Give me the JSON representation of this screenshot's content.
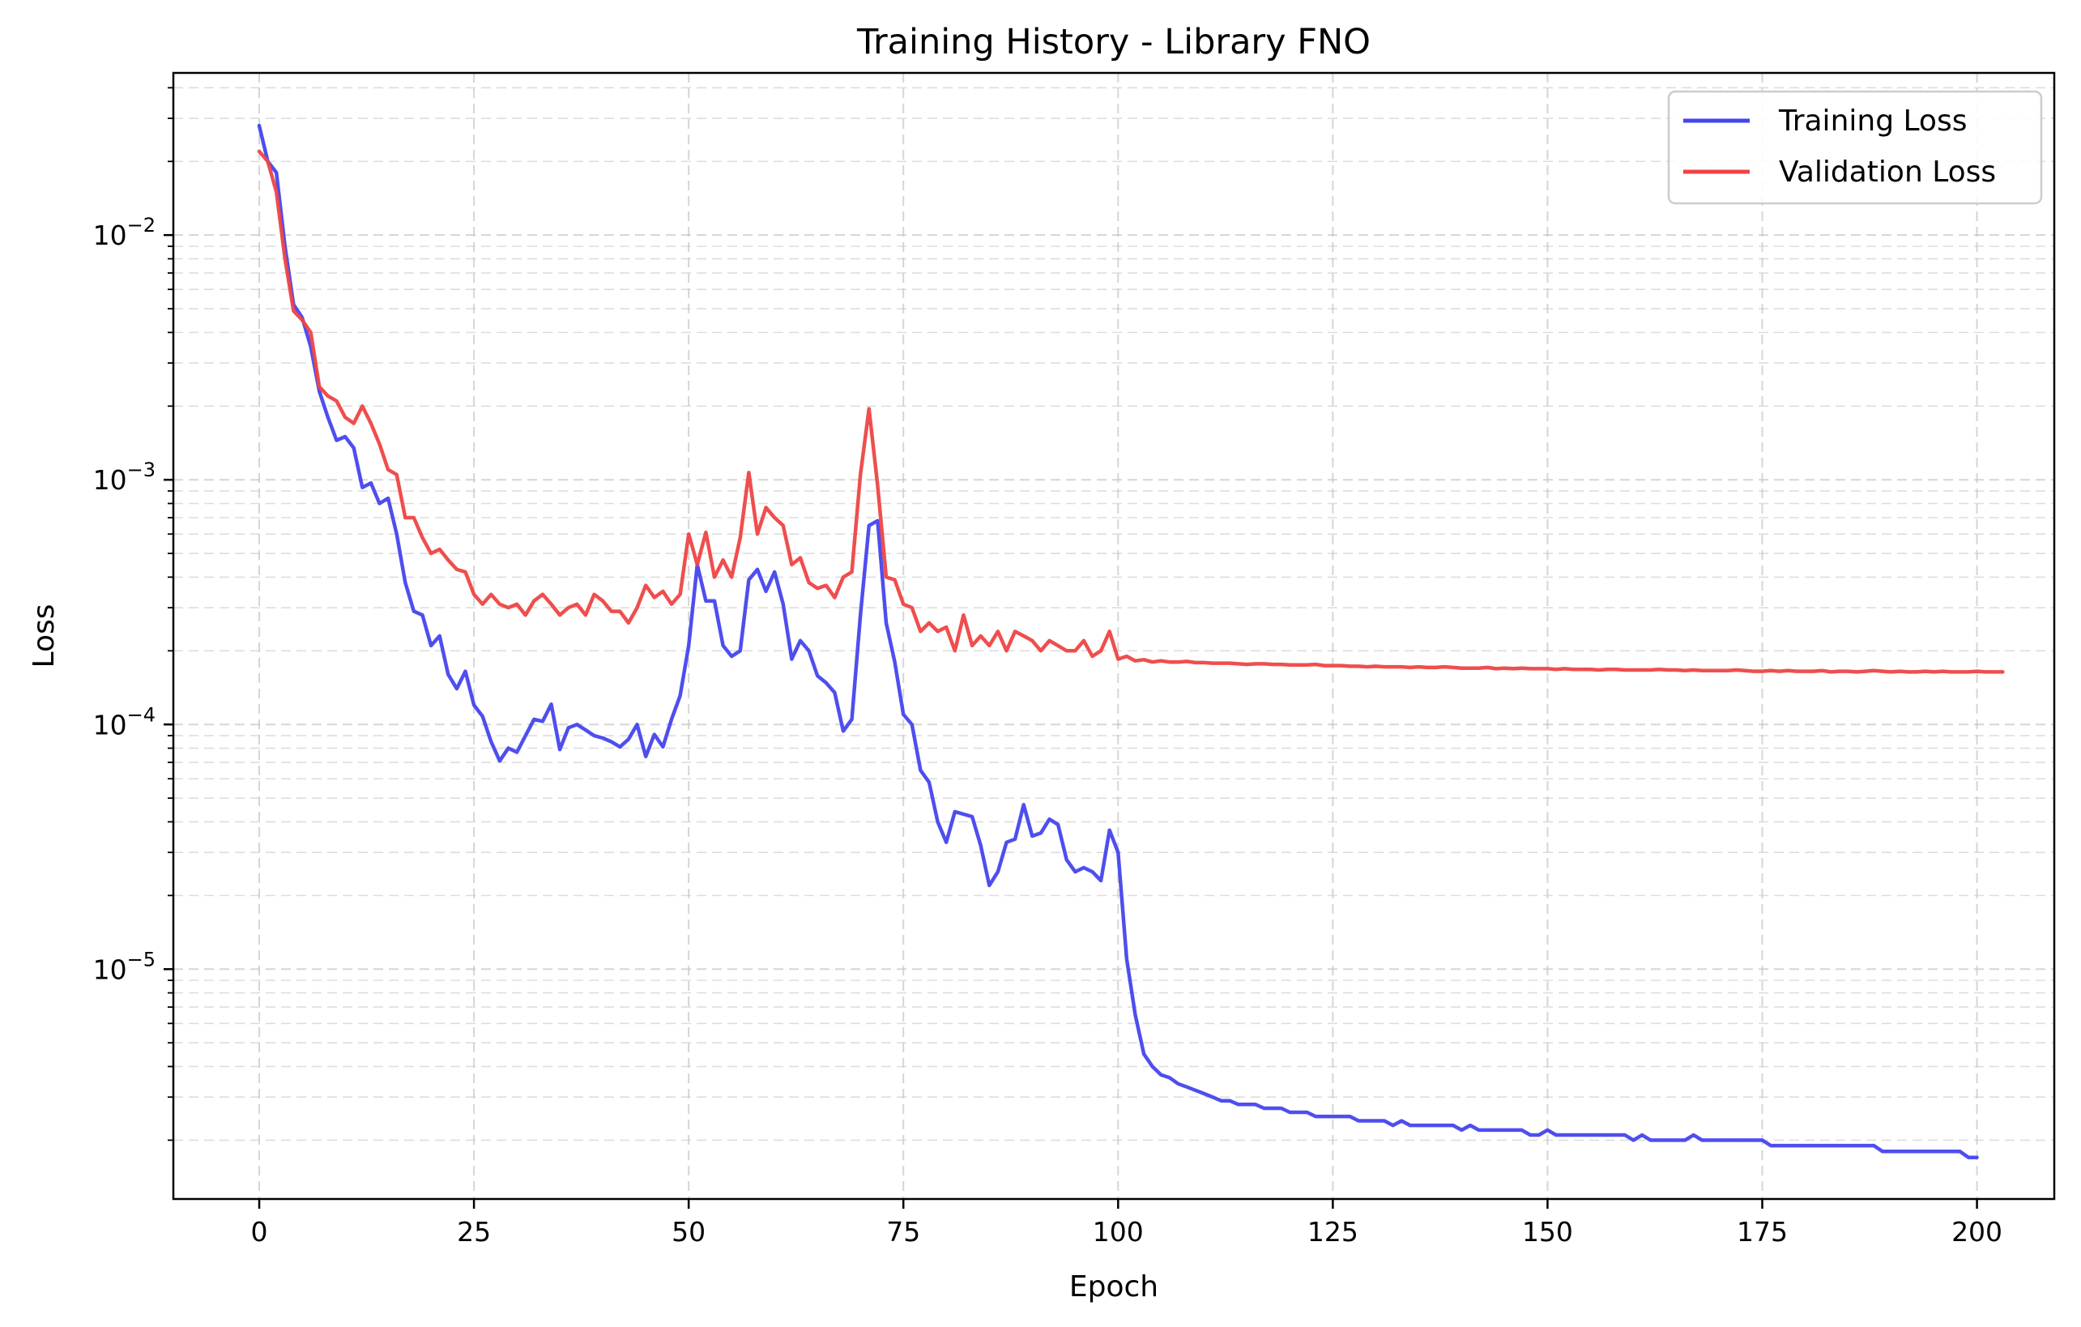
{
  "chart_data": {
    "type": "line",
    "title": "Training History - Library FNO",
    "xlabel": "Epoch",
    "ylabel": "Loss",
    "xlim": [
      -10,
      209
    ],
    "ylim": [
      1.15e-06,
      0.046
    ],
    "yscale": "log",
    "grid": true,
    "legend_position": "top-right",
    "x_ticks": [
      0,
      25,
      50,
      75,
      100,
      125,
      150,
      175,
      200
    ],
    "y_ticks": [
      {
        "value": 1e-05,
        "label": "10",
        "exp": "−5"
      },
      {
        "value": 0.0001,
        "label": "10",
        "exp": "−4"
      },
      {
        "value": 0.001,
        "label": "10",
        "exp": "−3"
      },
      {
        "value": 0.01,
        "label": "10",
        "exp": "−2"
      }
    ],
    "x_start": 0,
    "series": [
      {
        "name": "Training Loss",
        "color": "#4444ee",
        "values": [
          0.028,
          0.02,
          0.018,
          0.009,
          0.0052,
          0.0046,
          0.0035,
          0.0023,
          0.0018,
          0.00145,
          0.0015,
          0.00135,
          0.00093,
          0.00097,
          0.0008,
          0.00084,
          0.0006,
          0.00038,
          0.00029,
          0.00028,
          0.00021,
          0.00023,
          0.00016,
          0.00014,
          0.000165,
          0.00012,
          0.000108,
          8.5e-05,
          7.1e-05,
          8e-05,
          7.7e-05,
          9e-05,
          0.000105,
          0.000103,
          0.000121,
          7.9e-05,
          9.7e-05,
          0.0001,
          9.5e-05,
          9e-05,
          8.8e-05,
          8.5e-05,
          8.1e-05,
          8.7e-05,
          0.0001,
          7.4e-05,
          9.1e-05,
          8.1e-05,
          0.000105,
          0.000131,
          0.00021,
          0.00045,
          0.00032,
          0.00032,
          0.00021,
          0.00019,
          0.0002,
          0.00039,
          0.00043,
          0.00035,
          0.00042,
          0.00031,
          0.000185,
          0.00022,
          0.0002,
          0.000158,
          0.000148,
          0.000135,
          9.4e-05,
          0.000105,
          0.00028,
          0.00065,
          0.00068,
          0.00026,
          0.00018,
          0.00011,
          0.0001,
          6.5e-05,
          5.8e-05,
          4e-05,
          3.3e-05,
          4.4e-05,
          4.3e-05,
          4.2e-05,
          3.2e-05,
          2.2e-05,
          2.5e-05,
          3.3e-05,
          3.4e-05,
          4.7e-05,
          3.5e-05,
          3.6e-05,
          4.1e-05,
          3.9e-05,
          2.8e-05,
          2.5e-05,
          2.6e-05,
          2.5e-05,
          2.3e-05,
          3.7e-05,
          3e-05,
          1.1e-05,
          6.5e-06,
          4.5e-06,
          4e-06,
          3.7e-06,
          3.6e-06,
          3.4e-06,
          3.3e-06,
          3.2e-06,
          3.1e-06,
          3e-06,
          2.9e-06,
          2.9e-06,
          2.8e-06,
          2.8e-06,
          2.8e-06,
          2.7e-06,
          2.7e-06,
          2.7e-06,
          2.6e-06,
          2.6e-06,
          2.6e-06,
          2.5e-06,
          2.5e-06,
          2.5e-06,
          2.5e-06,
          2.5e-06,
          2.4e-06,
          2.4e-06,
          2.4e-06,
          2.4e-06,
          2.3e-06,
          2.4e-06,
          2.3e-06,
          2.3e-06,
          2.3e-06,
          2.3e-06,
          2.3e-06,
          2.3e-06,
          2.2e-06,
          2.3e-06,
          2.2e-06,
          2.2e-06,
          2.2e-06,
          2.2e-06,
          2.2e-06,
          2.2e-06,
          2.1e-06,
          2.1e-06,
          2.2e-06,
          2.1e-06,
          2.1e-06,
          2.1e-06,
          2.1e-06,
          2.1e-06,
          2.1e-06,
          2.1e-06,
          2.1e-06,
          2.1e-06,
          2e-06,
          2.1e-06,
          2e-06,
          2e-06,
          2e-06,
          2e-06,
          2e-06,
          2.1e-06,
          2e-06,
          2e-06,
          2e-06,
          2e-06,
          2e-06,
          2e-06,
          2e-06,
          2e-06,
          1.9e-06,
          1.9e-06,
          1.9e-06,
          1.9e-06,
          1.9e-06,
          1.9e-06,
          1.9e-06,
          1.9e-06,
          1.9e-06,
          1.9e-06,
          1.9e-06,
          1.9e-06,
          1.9e-06,
          1.8e-06,
          1.8e-06,
          1.8e-06,
          1.8e-06,
          1.8e-06,
          1.8e-06,
          1.8e-06,
          1.8e-06,
          1.8e-06,
          1.8e-06,
          1.7e-06,
          1.7e-06
        ]
      },
      {
        "name": "Validation Loss",
        "color": "#ee4444",
        "values": [
          0.022,
          0.02,
          0.015,
          0.008,
          0.0049,
          0.0045,
          0.004,
          0.0024,
          0.0022,
          0.0021,
          0.0018,
          0.0017,
          0.002,
          0.0017,
          0.0014,
          0.0011,
          0.00105,
          0.0007,
          0.0007,
          0.00058,
          0.0005,
          0.00052,
          0.00047,
          0.00043,
          0.00042,
          0.00034,
          0.00031,
          0.00034,
          0.00031,
          0.0003,
          0.00031,
          0.00028,
          0.00032,
          0.00034,
          0.00031,
          0.00028,
          0.0003,
          0.00031,
          0.00028,
          0.00034,
          0.00032,
          0.00029,
          0.00029,
          0.00026,
          0.0003,
          0.00037,
          0.00033,
          0.00035,
          0.00031,
          0.00034,
          0.0006,
          0.00045,
          0.00061,
          0.0004,
          0.00047,
          0.0004,
          0.00058,
          0.00107,
          0.0006,
          0.00077,
          0.0007,
          0.00065,
          0.00045,
          0.00048,
          0.00038,
          0.00036,
          0.00037,
          0.00033,
          0.0004,
          0.00042,
          0.00105,
          0.00195,
          0.00095,
          0.0004,
          0.00039,
          0.00031,
          0.0003,
          0.00024,
          0.00026,
          0.00024,
          0.00025,
          0.0002,
          0.00028,
          0.00021,
          0.00023,
          0.00021,
          0.00024,
          0.0002,
          0.00024,
          0.00023,
          0.00022,
          0.0002,
          0.00022,
          0.00021,
          0.0002,
          0.0002,
          0.00022,
          0.00019,
          0.0002,
          0.00024,
          0.000185,
          0.00019,
          0.000182,
          0.000184,
          0.00018,
          0.000182,
          0.00018,
          0.00018,
          0.000181,
          0.000179,
          0.000179,
          0.000178,
          0.000178,
          0.000178,
          0.000177,
          0.000176,
          0.000177,
          0.000177,
          0.000176,
          0.000176,
          0.000175,
          0.000175,
          0.000175,
          0.000176,
          0.000174,
          0.000174,
          0.000174,
          0.000173,
          0.000173,
          0.000172,
          0.000173,
          0.000172,
          0.000172,
          0.000172,
          0.000171,
          0.000172,
          0.000171,
          0.000171,
          0.000172,
          0.000171,
          0.00017,
          0.00017,
          0.00017,
          0.000171,
          0.000169,
          0.00017,
          0.000169,
          0.00017,
          0.000169,
          0.000169,
          0.000169,
          0.000168,
          0.000169,
          0.000168,
          0.000168,
          0.000168,
          0.000167,
          0.000168,
          0.000168,
          0.000167,
          0.000167,
          0.000167,
          0.000167,
          0.000168,
          0.000167,
          0.000167,
          0.000166,
          0.000167,
          0.000166,
          0.000166,
          0.000166,
          0.000166,
          0.000167,
          0.000166,
          0.000165,
          0.000165,
          0.000166,
          0.000165,
          0.000166,
          0.000165,
          0.000165,
          0.000165,
          0.000166,
          0.000164,
          0.000165,
          0.000165,
          0.000164,
          0.000165,
          0.000166,
          0.000165,
          0.000164,
          0.000165,
          0.000164,
          0.000164,
          0.000165,
          0.000164,
          0.000165,
          0.000164,
          0.000164,
          0.000164,
          0.000165,
          0.000164,
          0.000164,
          0.000164
        ]
      }
    ]
  }
}
